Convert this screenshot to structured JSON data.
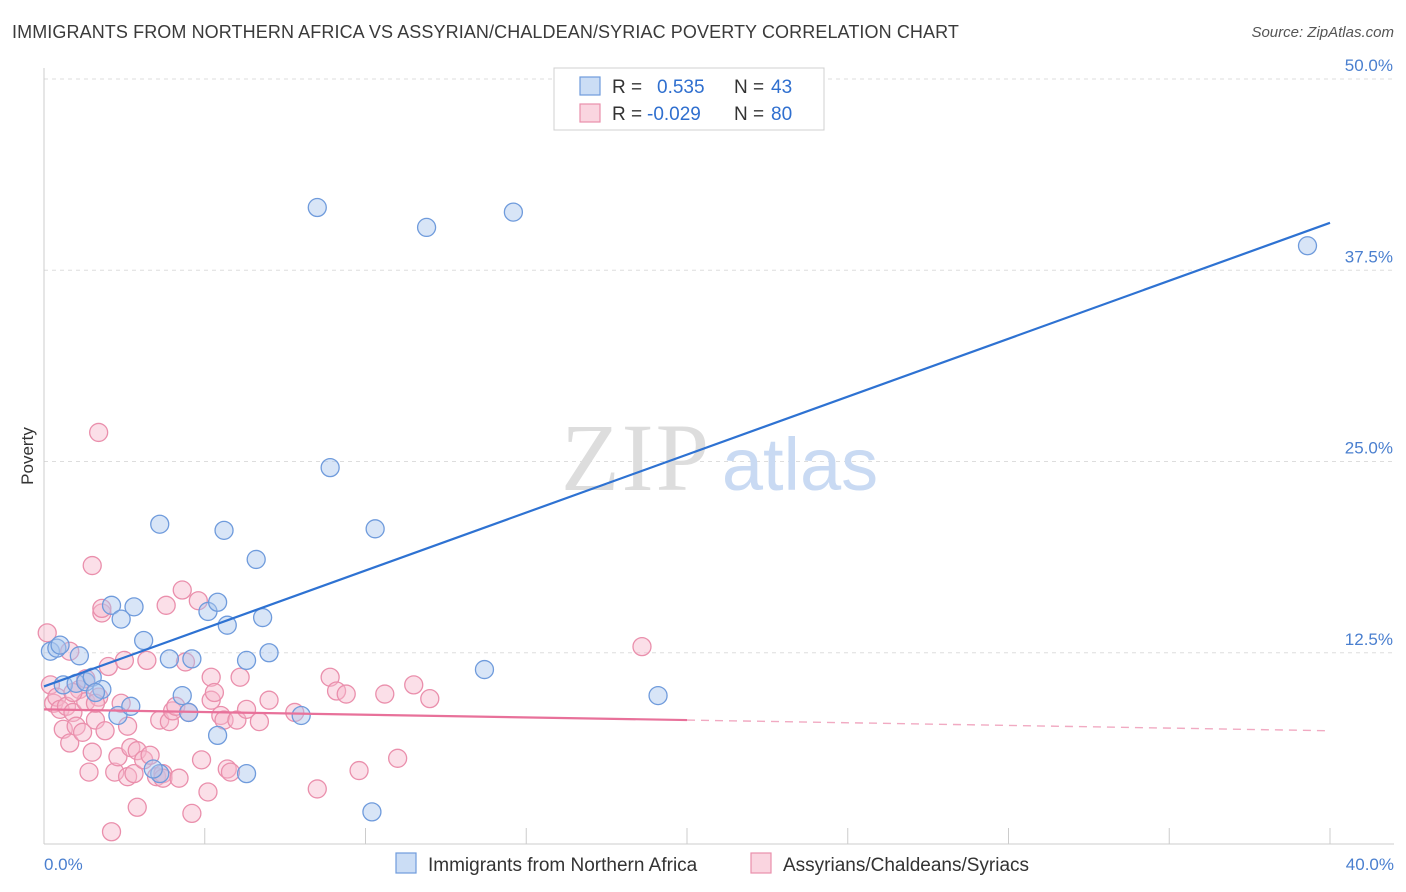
{
  "header": {
    "title": "IMMIGRANTS FROM NORTHERN AFRICA VS ASSYRIAN/CHALDEAN/SYRIAC POVERTY CORRELATION CHART",
    "source": "Source: ZipAtlas.com"
  },
  "watermark": {
    "zip": "ZIP",
    "atlas": "atlas"
  },
  "colors": {
    "blue_fill": "#a9c6ee",
    "blue_stroke": "#6f9bdc",
    "blue_line": "#2e72d2",
    "pink_fill": "#f6b9cb",
    "pink_stroke": "#ea8fac",
    "pink_line": "#e8719a",
    "tick_text": "#4a7fcf",
    "grid": "#dddddd"
  },
  "legend": {
    "rows": [
      {
        "r_label": "R =",
        "r_value": "0.535",
        "n_label": "N =",
        "n_value": "43",
        "series": "blue"
      },
      {
        "r_label": "R =",
        "r_value": "-0.029",
        "n_label": "N =",
        "n_value": "80",
        "series": "pink"
      }
    ]
  },
  "chart_data": {
    "type": "scatter",
    "title": "IMMIGRANTS FROM NORTHERN AFRICA VS ASSYRIAN/CHALDEAN/SYRIAC POVERTY CORRELATION CHART",
    "xlabel": "",
    "ylabel": "Poverty",
    "xlim": [
      0,
      40
    ],
    "ylim": [
      0,
      50
    ],
    "x_tick_labels": [
      "0.0%",
      "40.0%"
    ],
    "y_ticks": [
      12.5,
      25.0,
      37.5,
      50.0
    ],
    "y_tick_labels": [
      "12.5%",
      "25.0%",
      "37.5%",
      "50.0%"
    ],
    "legend_position": "top-center",
    "series": [
      {
        "name": "Immigrants from Northern Africa",
        "color": "blue",
        "R": 0.535,
        "N": 43,
        "trend": {
          "x0": 0.0,
          "y0": 10.3,
          "x1": 40.0,
          "y1": 40.6,
          "dashed_from": null
        },
        "points": [
          [
            0.2,
            12.6
          ],
          [
            0.4,
            12.8
          ],
          [
            0.5,
            13.0
          ],
          [
            0.6,
            10.4
          ],
          [
            1.0,
            10.5
          ],
          [
            1.1,
            12.3
          ],
          [
            1.3,
            10.6
          ],
          [
            1.5,
            10.9
          ],
          [
            1.8,
            10.1
          ],
          [
            2.1,
            15.6
          ],
          [
            2.4,
            14.7
          ],
          [
            2.8,
            15.5
          ],
          [
            3.1,
            13.3
          ],
          [
            3.6,
            4.6
          ],
          [
            3.4,
            4.9
          ],
          [
            3.6,
            20.9
          ],
          [
            3.9,
            12.1
          ],
          [
            4.3,
            9.7
          ],
          [
            4.5,
            8.6
          ],
          [
            4.6,
            12.1
          ],
          [
            5.1,
            15.2
          ],
          [
            5.4,
            15.8
          ],
          [
            5.7,
            14.3
          ],
          [
            5.4,
            7.1
          ],
          [
            5.6,
            20.5
          ],
          [
            6.3,
            12.0
          ],
          [
            6.3,
            4.6
          ],
          [
            6.6,
            18.6
          ],
          [
            6.8,
            14.8
          ],
          [
            7.0,
            12.5
          ],
          [
            8.0,
            8.4
          ],
          [
            8.5,
            41.6
          ],
          [
            8.9,
            24.6
          ],
          [
            10.3,
            20.6
          ],
          [
            10.2,
            2.1
          ],
          [
            11.9,
            40.3
          ],
          [
            13.7,
            11.4
          ],
          [
            14.6,
            41.3
          ],
          [
            19.1,
            9.7
          ],
          [
            39.3,
            39.1
          ],
          [
            2.3,
            8.4
          ],
          [
            2.7,
            9.0
          ],
          [
            1.6,
            9.9
          ]
        ]
      },
      {
        "name": "Assyrians/Chaldeans/Syriacs",
        "color": "pink",
        "R": -0.029,
        "N": 80,
        "trend": {
          "x0": 0.0,
          "y0": 8.8,
          "x1": 40.0,
          "y1": 7.4,
          "dashed_from": 20.0
        },
        "points": [
          [
            0.1,
            13.8
          ],
          [
            0.2,
            10.4
          ],
          [
            0.3,
            9.2
          ],
          [
            0.4,
            9.6
          ],
          [
            0.5,
            8.8
          ],
          [
            0.6,
            7.5
          ],
          [
            0.7,
            9.0
          ],
          [
            0.8,
            12.6
          ],
          [
            0.8,
            6.6
          ],
          [
            0.9,
            8.6
          ],
          [
            1.0,
            7.7
          ],
          [
            1.1,
            10.1
          ],
          [
            1.2,
            7.3
          ],
          [
            1.3,
            10.8
          ],
          [
            1.3,
            9.3
          ],
          [
            1.4,
            4.7
          ],
          [
            1.5,
            6.0
          ],
          [
            1.5,
            18.2
          ],
          [
            1.6,
            8.1
          ],
          [
            1.7,
            26.9
          ],
          [
            1.7,
            9.6
          ],
          [
            1.8,
            15.1
          ],
          [
            1.8,
            15.4
          ],
          [
            1.9,
            7.4
          ],
          [
            2.0,
            11.6
          ],
          [
            2.1,
            0.8
          ],
          [
            2.2,
            4.7
          ],
          [
            2.3,
            5.7
          ],
          [
            2.4,
            9.2
          ],
          [
            2.5,
            12.0
          ],
          [
            2.6,
            7.7
          ],
          [
            2.6,
            4.4
          ],
          [
            2.7,
            6.3
          ],
          [
            2.8,
            4.6
          ],
          [
            2.9,
            2.4
          ],
          [
            2.9,
            6.1
          ],
          [
            3.1,
            5.5
          ],
          [
            3.2,
            12.0
          ],
          [
            3.3,
            5.8
          ],
          [
            3.5,
            4.4
          ],
          [
            3.6,
            8.1
          ],
          [
            3.7,
            4.6
          ],
          [
            3.7,
            4.3
          ],
          [
            3.8,
            15.6
          ],
          [
            3.9,
            8.0
          ],
          [
            4.0,
            8.7
          ],
          [
            4.1,
            9.0
          ],
          [
            4.2,
            4.3
          ],
          [
            4.3,
            16.6
          ],
          [
            4.4,
            11.9
          ],
          [
            4.5,
            8.6
          ],
          [
            4.6,
            2.0
          ],
          [
            4.8,
            15.9
          ],
          [
            4.9,
            5.5
          ],
          [
            5.1,
            3.4
          ],
          [
            5.2,
            9.4
          ],
          [
            5.2,
            10.9
          ],
          [
            5.3,
            9.9
          ],
          [
            5.5,
            8.4
          ],
          [
            5.6,
            8.1
          ],
          [
            5.7,
            4.9
          ],
          [
            5.8,
            4.7
          ],
          [
            6.0,
            8.1
          ],
          [
            6.1,
            10.9
          ],
          [
            6.3,
            8.8
          ],
          [
            6.7,
            8.0
          ],
          [
            7.0,
            9.4
          ],
          [
            7.8,
            8.6
          ],
          [
            8.5,
            3.6
          ],
          [
            8.9,
            10.9
          ],
          [
            9.1,
            10.0
          ],
          [
            9.4,
            9.8
          ],
          [
            9.8,
            4.8
          ],
          [
            10.6,
            9.8
          ],
          [
            11.0,
            5.6
          ],
          [
            11.5,
            10.4
          ],
          [
            12.0,
            9.5
          ],
          [
            18.6,
            12.9
          ],
          [
            1.6,
            9.2
          ],
          [
            0.9,
            9.9
          ]
        ]
      }
    ]
  }
}
